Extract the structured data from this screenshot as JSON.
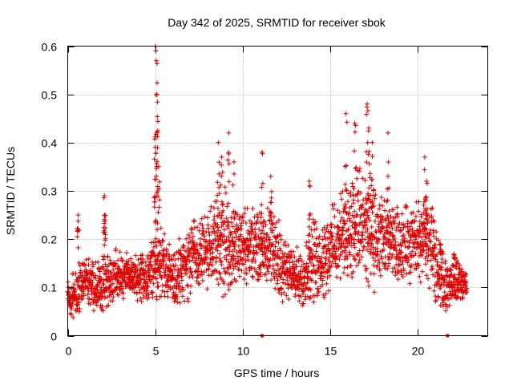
{
  "chart_data": {
    "type": "scatter",
    "title": "Day 342 of 2025, SRMTID for receiver sbok",
    "xlabel": "GPS time / hours",
    "ylabel": "SRMTID / TECUs",
    "xlim": [
      0,
      24
    ],
    "ylim": [
      0,
      0.6
    ],
    "xticks": [
      "0",
      "5",
      "10",
      "15",
      "20"
    ],
    "yticks": [
      "0",
      "0.1",
      "0.2",
      "0.3",
      "0.4",
      "0.5",
      "0.6"
    ],
    "grid": true,
    "marker": "plus",
    "color": "#dd0000",
    "envelope_x": [
      0,
      0.5,
      1,
      1.5,
      2,
      2.5,
      3,
      3.5,
      4,
      4.5,
      5,
      5.5,
      6,
      6.5,
      7,
      7.5,
      8,
      8.5,
      9,
      9.5,
      10,
      10.5,
      11,
      11.5,
      12,
      12.5,
      13,
      13.5,
      14,
      14.5,
      15,
      15.5,
      16,
      16.5,
      17,
      17.5,
      18,
      18.5,
      19,
      19.5,
      20,
      20.5,
      21,
      21.5,
      22,
      22.5,
      22.8
    ],
    "envelope_low": [
      0.05,
      0.05,
      0.08,
      0.06,
      0.05,
      0.08,
      0.09,
      0.1,
      0.08,
      0.08,
      0.1,
      0.09,
      0.07,
      0.08,
      0.1,
      0.12,
      0.12,
      0.13,
      0.1,
      0.12,
      0.13,
      0.13,
      0.13,
      0.12,
      0.1,
      0.09,
      0.08,
      0.08,
      0.09,
      0.1,
      0.12,
      0.13,
      0.15,
      0.14,
      0.12,
      0.12,
      0.13,
      0.13,
      0.13,
      0.13,
      0.12,
      0.14,
      0.1,
      0.06,
      0.08,
      0.08,
      0.08
    ],
    "envelope_high": [
      0.1,
      0.13,
      0.15,
      0.14,
      0.15,
      0.16,
      0.17,
      0.16,
      0.15,
      0.16,
      0.2,
      0.2,
      0.17,
      0.18,
      0.22,
      0.23,
      0.24,
      0.28,
      0.28,
      0.25,
      0.25,
      0.24,
      0.25,
      0.25,
      0.22,
      0.18,
      0.16,
      0.18,
      0.22,
      0.22,
      0.24,
      0.26,
      0.3,
      0.32,
      0.33,
      0.28,
      0.27,
      0.25,
      0.25,
      0.25,
      0.26,
      0.28,
      0.22,
      0.15,
      0.15,
      0.14,
      0.13
    ],
    "spikes": [
      {
        "x": 0.6,
        "y": 0.25
      },
      {
        "x": 2.1,
        "y": 0.29
      },
      {
        "x": 2.1,
        "y": 0.25
      },
      {
        "x": 5.0,
        "y": 0.6
      },
      {
        "x": 5.05,
        "y": 0.57
      },
      {
        "x": 5.1,
        "y": 0.5
      },
      {
        "x": 5.1,
        "y": 0.42
      },
      {
        "x": 5.2,
        "y": 0.35
      },
      {
        "x": 5.0,
        "y": 0.39
      },
      {
        "x": 8.6,
        "y": 0.4
      },
      {
        "x": 8.8,
        "y": 0.37
      },
      {
        "x": 9.2,
        "y": 0.42
      },
      {
        "x": 9.5,
        "y": 0.36
      },
      {
        "x": 11.1,
        "y": 0.38
      },
      {
        "x": 11.6,
        "y": 0.33
      },
      {
        "x": 13.8,
        "y": 0.32
      },
      {
        "x": 15.9,
        "y": 0.46
      },
      {
        "x": 16.4,
        "y": 0.44
      },
      {
        "x": 17.1,
        "y": 0.48
      },
      {
        "x": 17.2,
        "y": 0.43
      },
      {
        "x": 17.4,
        "y": 0.4
      },
      {
        "x": 18.3,
        "y": 0.42
      },
      {
        "x": 20.4,
        "y": 0.37
      },
      {
        "x": 20.5,
        "y": 0.32
      },
      {
        "x": 21.3,
        "y": 0.17
      },
      {
        "x": 22.1,
        "y": 0.16
      }
    ],
    "zero_markers": [
      {
        "x": 11.1,
        "y": 0
      },
      {
        "x": 21.7,
        "y": 0
      }
    ]
  }
}
